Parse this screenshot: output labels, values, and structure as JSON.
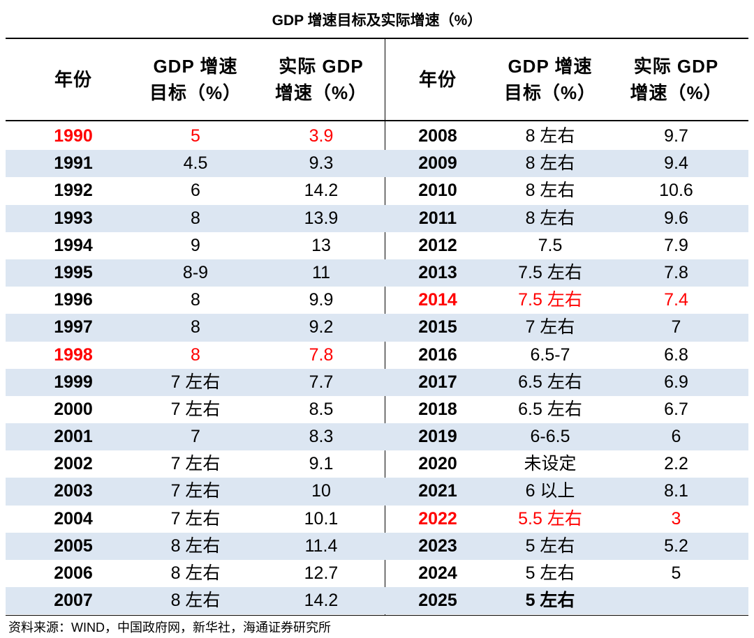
{
  "title": "GDP 增速目标及实际增速（%）",
  "header": {
    "year": "年份",
    "target_l1": "GDP 增速",
    "target_l2": "目标（%）",
    "actual_l1": "实际 GDP",
    "actual_l2": "增速（%）"
  },
  "highlight_color": "#ff0000",
  "shade_color": "#dce6f2",
  "left_rows": [
    {
      "year": "1990",
      "target": "5",
      "actual": "3.9",
      "highlight": true
    },
    {
      "year": "1991",
      "target": "4.5",
      "actual": "9.3"
    },
    {
      "year": "1992",
      "target": "6",
      "actual": "14.2"
    },
    {
      "year": "1993",
      "target": "8",
      "actual": "13.9"
    },
    {
      "year": "1994",
      "target": "9",
      "actual": "13"
    },
    {
      "year": "1995",
      "target": "8-9",
      "actual": "11"
    },
    {
      "year": "1996",
      "target": "8",
      "actual": "9.9"
    },
    {
      "year": "1997",
      "target": "8",
      "actual": "9.2"
    },
    {
      "year": "1998",
      "target": "8",
      "actual": "7.8",
      "highlight": true
    },
    {
      "year": "1999",
      "target": "7 左右",
      "actual": "7.7"
    },
    {
      "year": "2000",
      "target": "7 左右",
      "actual": "8.5"
    },
    {
      "year": "2001",
      "target": "7",
      "actual": "8.3"
    },
    {
      "year": "2002",
      "target": "7 左右",
      "actual": "9.1"
    },
    {
      "year": "2003",
      "target": "7 左右",
      "actual": "10"
    },
    {
      "year": "2004",
      "target": "7 左右",
      "actual": "10.1"
    },
    {
      "year": "2005",
      "target": "8 左右",
      "actual": "11.4"
    },
    {
      "year": "2006",
      "target": "8 左右",
      "actual": "12.7"
    },
    {
      "year": "2007",
      "target": "8 左右",
      "actual": "14.2"
    }
  ],
  "right_rows": [
    {
      "year": "2008",
      "target": "8 左右",
      "actual": "9.7"
    },
    {
      "year": "2009",
      "target": "8 左右",
      "actual": "9.4"
    },
    {
      "year": "2010",
      "target": "8 左右",
      "actual": "10.6"
    },
    {
      "year": "2011",
      "target": "8 左右",
      "actual": "9.6"
    },
    {
      "year": "2012",
      "target": "7.5",
      "actual": "7.9"
    },
    {
      "year": "2013",
      "target": "7.5 左右",
      "actual": "7.8"
    },
    {
      "year": "2014",
      "target": "7.5 左右",
      "actual": "7.4",
      "highlight": true
    },
    {
      "year": "2015",
      "target": "7 左右",
      "actual": "7"
    },
    {
      "year": "2016",
      "target": "6.5-7",
      "actual": "6.8"
    },
    {
      "year": "2017",
      "target": "6.5 左右",
      "actual": "6.9"
    },
    {
      "year": "2018",
      "target": "6.5 左右",
      "actual": "6.7"
    },
    {
      "year": "2019",
      "target": "6-6.5",
      "actual": "6"
    },
    {
      "year": "2020",
      "target": "未设定",
      "actual": "2.2"
    },
    {
      "year": "2021",
      "target": "6 以上",
      "actual": "8.1"
    },
    {
      "year": "2022",
      "target": "5.5 左右",
      "actual": "3",
      "highlight": true
    },
    {
      "year": "2023",
      "target": "5 左右",
      "actual": "5.2"
    },
    {
      "year": "2024",
      "target": "5 左右",
      "actual": "5"
    },
    {
      "year": "2025",
      "target": "5 左右",
      "actual": "",
      "bold_target": true
    }
  ],
  "source": "资料来源：WIND，中国政府网，新华社，海通证券研究所"
}
